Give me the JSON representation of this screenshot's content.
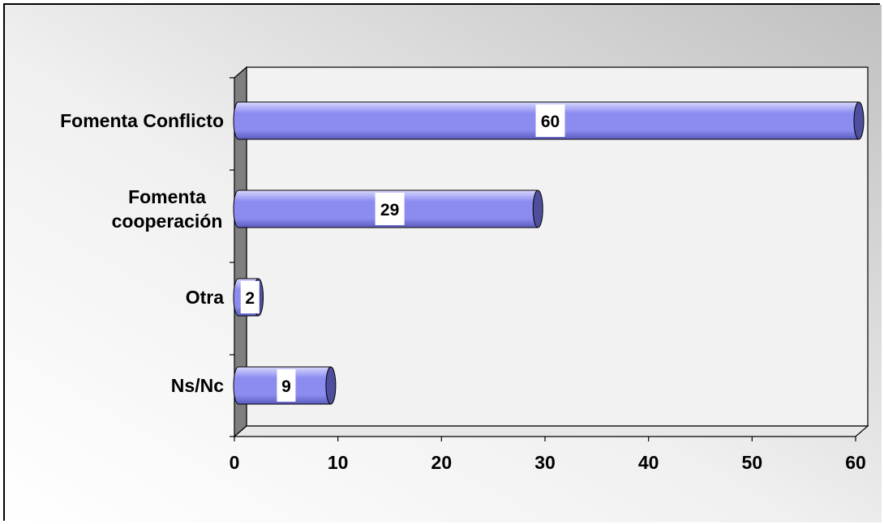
{
  "chart_data": {
    "type": "bar",
    "orientation": "horizontal",
    "style": "3d-cylinder",
    "categories": [
      "Fomenta Conflicto",
      "Fomenta cooperación",
      "Otra",
      "Ns/Nc"
    ],
    "category_lines": [
      [
        "Fomenta Conflicto"
      ],
      [
        "Fomenta",
        "cooperación"
      ],
      [
        "Otra"
      ],
      [
        "Ns/Nc"
      ]
    ],
    "values": [
      60,
      29,
      2,
      9
    ],
    "data_labels": [
      "60",
      "29",
      "2",
      "9"
    ],
    "xlim": [
      0,
      60
    ],
    "xticks": [
      0,
      10,
      20,
      30,
      40,
      50,
      60
    ],
    "xtick_labels": [
      "0",
      "10",
      "20",
      "30",
      "40",
      "50",
      "60"
    ],
    "title": "",
    "xlabel": "",
    "ylabel": "",
    "grid": false,
    "legend": "none"
  },
  "colors": {
    "bar_fill": "#8c8cf0",
    "bar_highlight": "#d8d8ff",
    "bar_shadow": "#5c5cbe",
    "bar_cap": "#4e4e9e",
    "wall": "#7f7f7f",
    "plot_bg": "#f2f2f2",
    "frame_bg_light": "#ffffff",
    "frame_bg_dark": "#c0c0c0",
    "text": "#000000"
  }
}
